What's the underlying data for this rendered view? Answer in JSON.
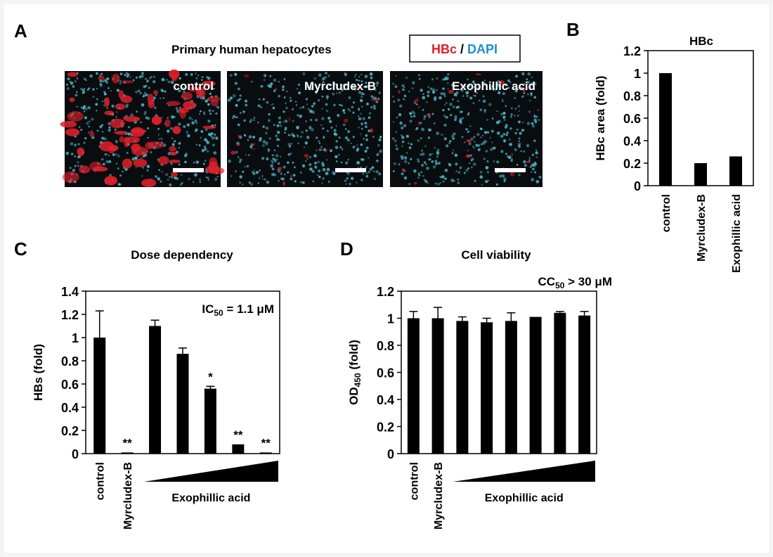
{
  "panel_labels": {
    "a": "A",
    "b": "B",
    "c": "C",
    "d": "D"
  },
  "panel_a": {
    "title": "Primary human hepatocytes",
    "legend": {
      "hbc": "HBc",
      "slash": " / ",
      "dapi": "DAPI"
    },
    "images": [
      {
        "label": "control",
        "signal": "high"
      },
      {
        "label": "Myrcludex-B",
        "signal": "low"
      },
      {
        "label": "Exophillic acid",
        "signal": "low"
      }
    ],
    "colors": {
      "hbc": "#e0202a",
      "dapi": "#1a8fd0",
      "nuclei": "#4fb8c8",
      "background": "#0a0d10"
    }
  },
  "chart_data": [
    {
      "panel": "B",
      "type": "bar",
      "title": "HBc",
      "ylabel": "HBc area (fold)",
      "ylim": [
        0,
        1.2
      ],
      "yticks": [
        "0",
        "0.2",
        "0.4",
        "0.6",
        "0.8",
        "1",
        "1.2"
      ],
      "categories": [
        "control",
        "Myrcludex-B",
        "Exophillic acid"
      ],
      "values": [
        1.0,
        0.2,
        0.26
      ]
    },
    {
      "panel": "C",
      "type": "bar",
      "title": "Dose dependency",
      "ylabel": "HBs (fold)",
      "ylim": [
        0,
        1.4
      ],
      "yticks": [
        "0",
        "0.2",
        "0.4",
        "0.6",
        "0.8",
        "1",
        "1.2",
        "1.4"
      ],
      "categories": [
        "control",
        "Myrcludex-B",
        "",
        "",
        "",
        "",
        ""
      ],
      "group_label": "Exophillic acid",
      "values": [
        1.0,
        0.01,
        1.1,
        0.86,
        0.56,
        0.08,
        0.01
      ],
      "errors": [
        0.23,
        0.0,
        0.05,
        0.05,
        0.02,
        0.0,
        0.0
      ],
      "significance": [
        "",
        "**",
        "",
        "",
        "*",
        "**",
        "**"
      ],
      "annotation": {
        "prefix": "IC",
        "sub": "50",
        "suffix": " = 1.1 μM"
      }
    },
    {
      "panel": "D",
      "type": "bar",
      "title": "Cell viability",
      "ylabel": {
        "main": "OD",
        "sub": "450",
        "suffix": " (fold)"
      },
      "ylim": [
        0,
        1.2
      ],
      "yticks": [
        "0",
        "0.2",
        "0.4",
        "0.6",
        "0.8",
        "1",
        "1.2"
      ],
      "categories": [
        "control",
        "Myrcludex-B",
        "",
        "",
        "",
        "",
        "",
        ""
      ],
      "group_label": "Exophillic acid",
      "values": [
        1.0,
        1.0,
        0.98,
        0.97,
        0.98,
        1.01,
        1.04,
        1.02
      ],
      "errors": [
        0.05,
        0.08,
        0.03,
        0.03,
        0.06,
        0.0,
        0.01,
        0.03
      ],
      "annotation": {
        "prefix": "CC",
        "sub": "50",
        "suffix": " > 30 μM"
      }
    }
  ]
}
